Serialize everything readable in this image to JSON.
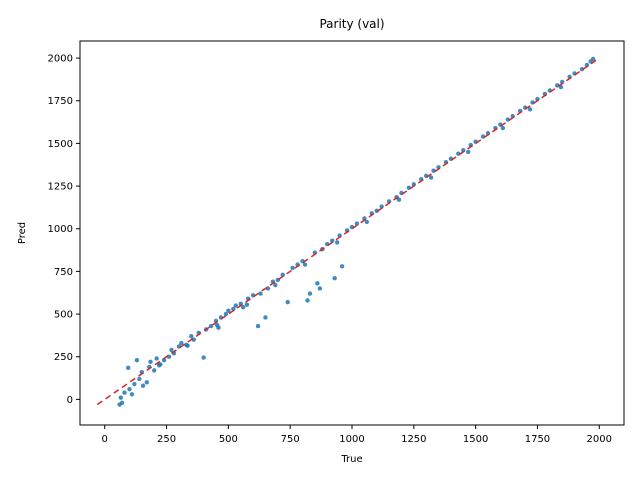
{
  "chart_data": {
    "type": "scatter",
    "title": "Parity (val)",
    "xlabel": "True",
    "ylabel": "Pred",
    "xlim": [
      -100,
      2100
    ],
    "ylim": [
      -150,
      2100
    ],
    "xticks": [
      0,
      250,
      500,
      750,
      1000,
      1250,
      1500,
      1750,
      2000
    ],
    "yticks": [
      0,
      250,
      500,
      750,
      1000,
      1250,
      1500,
      1750,
      2000
    ],
    "grid": false,
    "legend": "none",
    "colors": {
      "points": "#1f77b4",
      "reference_line": "#d62728"
    },
    "reference_line": {
      "style": "dashed",
      "from": [
        -30,
        -30
      ],
      "to": [
        1990,
        1990
      ]
    },
    "series": [
      {
        "points": [
          [
            60,
            -30
          ],
          [
            70,
            -20
          ],
          [
            65,
            10
          ],
          [
            80,
            40
          ],
          [
            100,
            60
          ],
          [
            110,
            30
          ],
          [
            120,
            90
          ],
          [
            95,
            185
          ],
          [
            130,
            230
          ],
          [
            140,
            120
          ],
          [
            150,
            160
          ],
          [
            155,
            80
          ],
          [
            170,
            100
          ],
          [
            180,
            190
          ],
          [
            185,
            220
          ],
          [
            200,
            170
          ],
          [
            210,
            240
          ],
          [
            220,
            200
          ],
          [
            240,
            230
          ],
          [
            260,
            250
          ],
          [
            270,
            290
          ],
          [
            280,
            270
          ],
          [
            300,
            310
          ],
          [
            310,
            330
          ],
          [
            330,
            320
          ],
          [
            350,
            370
          ],
          [
            360,
            350
          ],
          [
            380,
            390
          ],
          [
            400,
            245
          ],
          [
            410,
            410
          ],
          [
            430,
            430
          ],
          [
            450,
            460
          ],
          [
            460,
            420
          ],
          [
            470,
            480
          ],
          [
            490,
            500
          ],
          [
            500,
            520
          ],
          [
            520,
            530
          ],
          [
            530,
            550
          ],
          [
            550,
            560
          ],
          [
            560,
            540
          ],
          [
            580,
            590
          ],
          [
            600,
            610
          ],
          [
            620,
            430
          ],
          [
            630,
            620
          ],
          [
            650,
            480
          ],
          [
            660,
            650
          ],
          [
            680,
            690
          ],
          [
            700,
            700
          ],
          [
            720,
            730
          ],
          [
            740,
            570
          ],
          [
            760,
            770
          ],
          [
            780,
            790
          ],
          [
            800,
            810
          ],
          [
            820,
            580
          ],
          [
            830,
            620
          ],
          [
            850,
            860
          ],
          [
            860,
            680
          ],
          [
            870,
            650
          ],
          [
            880,
            880
          ],
          [
            900,
            910
          ],
          [
            920,
            930
          ],
          [
            930,
            710
          ],
          [
            950,
            960
          ],
          [
            960,
            780
          ],
          [
            980,
            990
          ],
          [
            1000,
            1010
          ],
          [
            1020,
            1030
          ],
          [
            1050,
            1060
          ],
          [
            1080,
            1090
          ],
          [
            1100,
            1105
          ],
          [
            1120,
            1130
          ],
          [
            1150,
            1160
          ],
          [
            1180,
            1185
          ],
          [
            1200,
            1210
          ],
          [
            1230,
            1240
          ],
          [
            1250,
            1260
          ],
          [
            1280,
            1290
          ],
          [
            1300,
            1310
          ],
          [
            1330,
            1340
          ],
          [
            1350,
            1360
          ],
          [
            1380,
            1390
          ],
          [
            1400,
            1410
          ],
          [
            1430,
            1440
          ],
          [
            1450,
            1460
          ],
          [
            1480,
            1490
          ],
          [
            1500,
            1510
          ],
          [
            1530,
            1540
          ],
          [
            1550,
            1560
          ],
          [
            1580,
            1590
          ],
          [
            1600,
            1610
          ],
          [
            1630,
            1640
          ],
          [
            1650,
            1660
          ],
          [
            1680,
            1690
          ],
          [
            1700,
            1710
          ],
          [
            1730,
            1740
          ],
          [
            1750,
            1760
          ],
          [
            1780,
            1790
          ],
          [
            1800,
            1810
          ],
          [
            1830,
            1840
          ],
          [
            1850,
            1860
          ],
          [
            1880,
            1890
          ],
          [
            1900,
            1910
          ],
          [
            1930,
            1935
          ],
          [
            1950,
            1960
          ],
          [
            1965,
            1980
          ],
          [
            1975,
            1995
          ],
          [
            1845,
            1830
          ],
          [
            1720,
            1700
          ],
          [
            1610,
            1590
          ],
          [
            1470,
            1450
          ],
          [
            1320,
            1300
          ],
          [
            1190,
            1170
          ],
          [
            1060,
            1040
          ],
          [
            940,
            920
          ],
          [
            810,
            790
          ],
          [
            690,
            670
          ],
          [
            575,
            555
          ],
          [
            455,
            435
          ],
          [
            335,
            315
          ],
          [
            225,
            205
          ]
        ]
      }
    ]
  }
}
